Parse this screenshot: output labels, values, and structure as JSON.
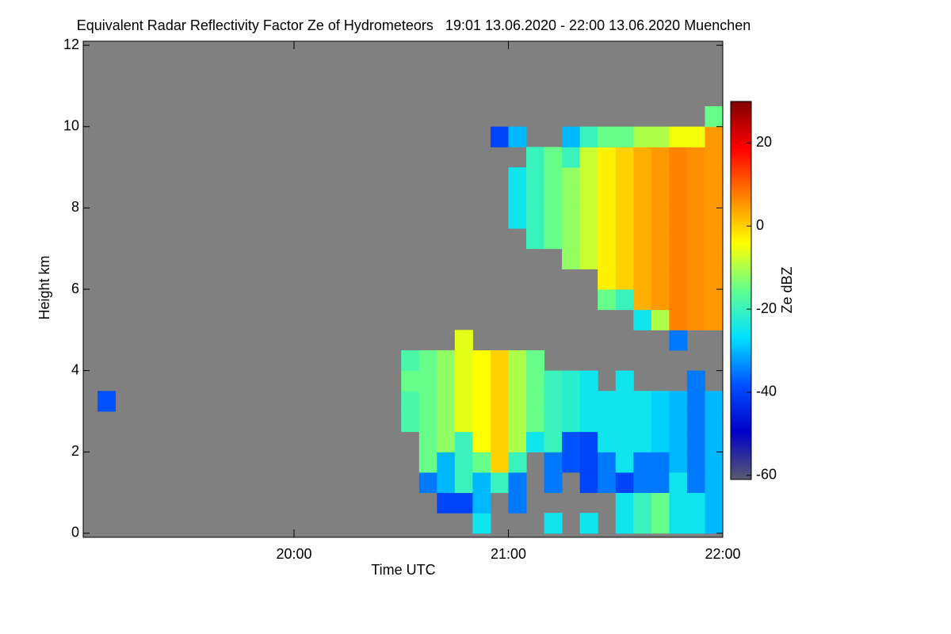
{
  "chart_data": {
    "type": "heatmap",
    "title": "Equivalent Radar Reflectivity Factor Ze of Hydrometeors   19:01 13.06.2020 - 22:00 13.06.2020 Muenchen",
    "x_label": "Time UTC",
    "y_label": "Height km",
    "colorbar_label": "Ze dBZ",
    "xlim": [
      1,
      180
    ],
    "xticks": [
      {
        "value": 60,
        "label": "20:00"
      },
      {
        "value": 120,
        "label": "21:00"
      },
      {
        "value": 180,
        "label": "22:00"
      }
    ],
    "ylim": [
      -0.1,
      12.1
    ],
    "yticks": [
      0,
      2,
      4,
      6,
      8,
      10,
      12
    ],
    "zlim": [
      -61,
      30
    ],
    "zticks": [
      -60,
      -40,
      -20,
      0,
      20
    ],
    "nan_color": "#808080",
    "colorscale": [
      "#5a5a6e",
      "#0000c8",
      "#0050ff",
      "#00e0ff",
      "#60ff90",
      "#ffff00",
      "#ff8000",
      "#ff0000",
      "#800000"
    ],
    "x_edges": [
      5,
      10,
      90,
      95,
      100,
      105,
      110,
      115,
      120,
      125,
      130,
      135,
      140,
      145,
      150,
      155,
      160,
      165,
      170,
      175,
      180
    ],
    "y_edges": [
      0,
      0.5,
      1,
      1.5,
      2,
      2.5,
      3,
      3.5,
      4,
      4.5,
      5,
      5.5,
      6,
      6.5,
      7,
      7.5,
      8,
      8.5,
      9,
      9.5,
      10,
      10.5
    ],
    "z": [
      [
        null,
        null,
        null,
        null,
        null,
        null,
        -38,
        null,
        null,
        null,
        null,
        null,
        null,
        null,
        null,
        null,
        null,
        null,
        null,
        null,
        null
      ],
      [
        null,
        null,
        null,
        null,
        null,
        null,
        null,
        null,
        null,
        null,
        null,
        null,
        null,
        null,
        null,
        null,
        null,
        null,
        null,
        null,
        null
      ],
      [
        null,
        null,
        null,
        null,
        null,
        -18,
        -18,
        -15,
        -18,
        null,
        null,
        null,
        null,
        null,
        null,
        null,
        null,
        null,
        null,
        null,
        null
      ],
      [
        null,
        null,
        -35,
        -15,
        -15,
        -15,
        -15,
        -15,
        -15,
        null,
        null,
        null,
        null,
        null,
        null,
        null,
        null,
        null,
        null,
        null,
        null
      ],
      [
        null,
        -40,
        -30,
        -30,
        -12,
        -12,
        -12,
        -12,
        -12,
        null,
        null,
        null,
        null,
        null,
        null,
        null,
        null,
        null,
        null,
        null,
        null
      ],
      [
        null,
        -40,
        -20,
        -20,
        -20,
        -6,
        -6,
        -6,
        -6,
        -6,
        null,
        null,
        null,
        null,
        null,
        null,
        null,
        null,
        null,
        null,
        null
      ],
      [
        -25,
        -30,
        -30,
        -15,
        -4,
        -4,
        -4,
        -4,
        -4,
        null,
        null,
        null,
        null,
        null,
        null,
        null,
        null,
        null,
        null,
        null,
        null
      ],
      [
        null,
        null,
        -20,
        0,
        0,
        0,
        0,
        0,
        0,
        null,
        null,
        null,
        null,
        null,
        null,
        null,
        null,
        null,
        null,
        -40,
        null
      ],
      [
        null,
        -35,
        -35,
        -20,
        -10,
        -10,
        -10,
        -10,
        -10,
        null,
        null,
        null,
        null,
        null,
        null,
        -25,
        -25,
        -25,
        null,
        -30,
        null
      ],
      [
        null,
        null,
        null,
        null,
        -25,
        -15,
        -15,
        -15,
        -15,
        null,
        null,
        null,
        null,
        null,
        -20,
        -20,
        -20,
        -20,
        -20,
        null,
        null
      ],
      [
        -25,
        null,
        -35,
        -35,
        -20,
        -20,
        -20,
        -20,
        null,
        null,
        null,
        null,
        null,
        null,
        -15,
        -15,
        -15,
        -15,
        -15,
        null,
        null
      ],
      [
        null,
        null,
        null,
        -38,
        -38,
        -22,
        -22,
        -22,
        null,
        null,
        null,
        null,
        null,
        -12,
        -12,
        -12,
        -12,
        -12,
        -20,
        -30,
        null
      ],
      [
        -25,
        null,
        -40,
        -40,
        -40,
        -25,
        -25,
        -25,
        null,
        null,
        null,
        null,
        null,
        -8,
        -8,
        -8,
        -8,
        -8,
        -8,
        -20,
        null
      ],
      [
        null,
        null,
        -35,
        -35,
        -25,
        -25,
        -25,
        null,
        null,
        null,
        null,
        -15,
        -3,
        -3,
        -3,
        -3,
        -3,
        -3,
        -3,
        -15,
        null
      ],
      [
        -25,
        -25,
        -40,
        -25,
        -25,
        -25,
        -25,
        -25,
        null,
        null,
        null,
        -20,
        0,
        0,
        0,
        0,
        0,
        0,
        0,
        -15,
        null
      ],
      [
        -20,
        -20,
        -35,
        -35,
        -25,
        -25,
        -25,
        null,
        null,
        null,
        -25,
        3,
        3,
        3,
        3,
        3,
        3,
        3,
        3,
        -10,
        null
      ],
      [
        -15,
        -15,
        -35,
        -35,
        -28,
        -28,
        -28,
        null,
        null,
        null,
        -10,
        5,
        5,
        5,
        5,
        5,
        5,
        5,
        5,
        -10,
        null
      ],
      [
        -25,
        -25,
        -25,
        -30,
        -30,
        -30,
        -30,
        null,
        null,
        -35,
        7,
        7,
        7,
        7,
        7,
        7,
        7,
        7,
        7,
        -5,
        null
      ],
      [
        -25,
        -25,
        -35,
        -35,
        -35,
        -35,
        -35,
        -35,
        null,
        null,
        6,
        6,
        6,
        6,
        6,
        6,
        6,
        6,
        6,
        -5,
        null
      ],
      [
        -30,
        -30,
        -30,
        -30,
        -30,
        -30,
        -30,
        null,
        null,
        null,
        5,
        5,
        5,
        5,
        5,
        5,
        5,
        5,
        5,
        5,
        -15
      ]
    ]
  }
}
